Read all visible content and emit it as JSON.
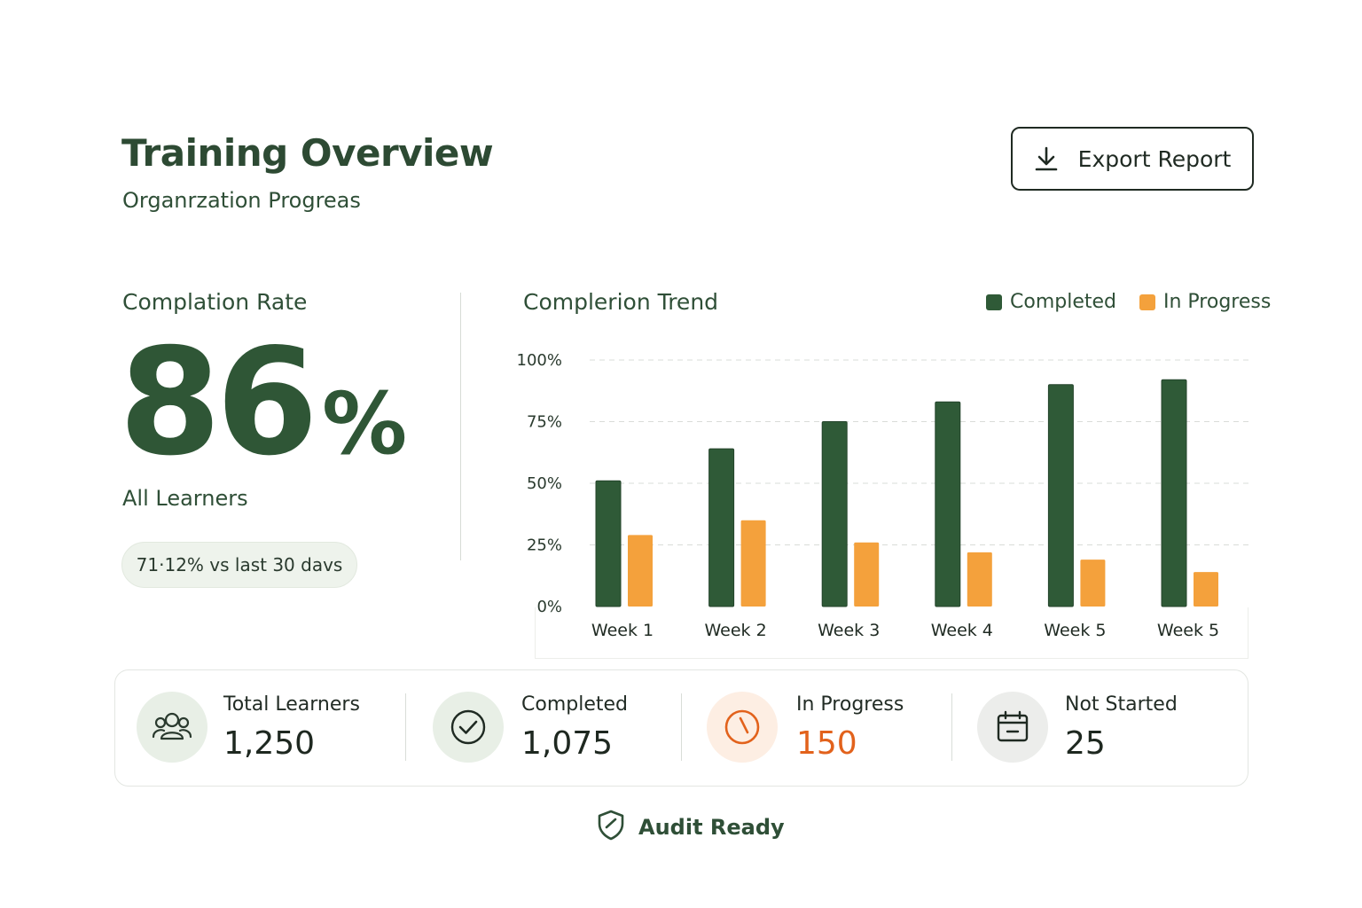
{
  "header": {
    "title": "Training Overview",
    "subtitle": "Organrzation Progreas",
    "export_label": "Export Report"
  },
  "rate": {
    "title": "Complation Rate",
    "value": "86",
    "unit": "%",
    "caption": "All Learners",
    "delta": "71·12% vs last 30 davs"
  },
  "trend": {
    "title": "Complerion Trend"
  },
  "colors": {
    "completed": "#2f5a37",
    "in_progress": "#f4a13c",
    "accent_orange": "#e2621c",
    "text_green": "#2f4f37"
  },
  "chart_data": {
    "type": "bar",
    "title": "Complerion Trend",
    "categories": [
      "Week 1",
      "Week 2",
      "Week 3",
      "Week 4",
      "Week 5",
      "Week 5"
    ],
    "series": [
      {
        "name": "Completed",
        "values": [
          51,
          64,
          75,
          83,
          90,
          92
        ]
      },
      {
        "name": "In Progress",
        "values": [
          29,
          35,
          26,
          22,
          19,
          14
        ]
      }
    ],
    "y_ticks": [
      "0%",
      "25%",
      "50%",
      "75%",
      "100%"
    ],
    "ylim": [
      0,
      100
    ],
    "xlabel": "",
    "ylabel": "",
    "grid": true,
    "legend": "top-right"
  },
  "stats": [
    {
      "label": "Total Learners",
      "value": "1,250",
      "icon": "users-icon"
    },
    {
      "label": "Completed",
      "value": "1,075",
      "icon": "check-circle-icon"
    },
    {
      "label": "In Progress",
      "value": "150",
      "icon": "clock-icon"
    },
    {
      "label": "Not Started",
      "value": "25",
      "icon": "calendar-icon"
    }
  ],
  "footer": {
    "audit_label": "Audit Ready"
  }
}
